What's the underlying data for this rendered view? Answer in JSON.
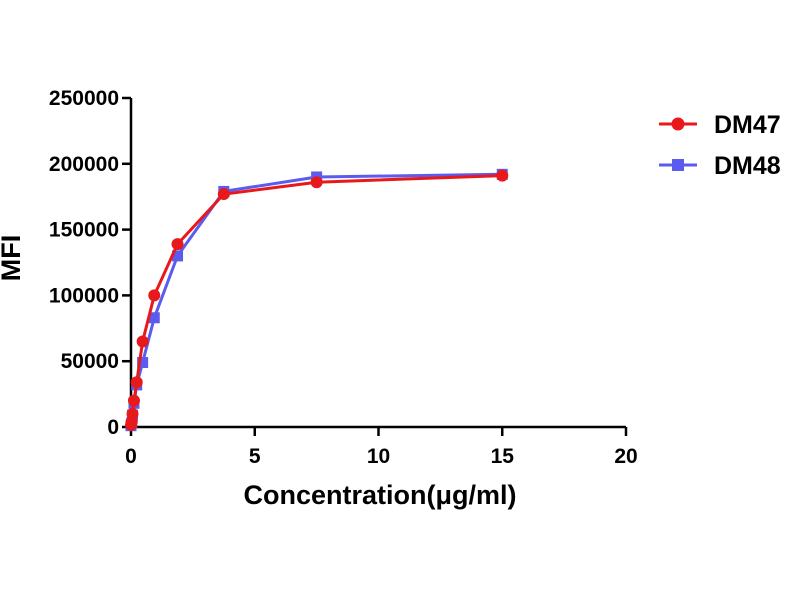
{
  "chart_data": {
    "type": "line",
    "xlabel": "Concentration(μg/ml)",
    "ylabel": "MFI",
    "xlim": [
      0,
      20
    ],
    "ylim": [
      0,
      250000
    ],
    "x_ticks": [
      0,
      5,
      10,
      15,
      20
    ],
    "y_ticks": [
      0,
      50000,
      100000,
      150000,
      200000,
      250000
    ],
    "x_tick_labels": [
      "0",
      "5",
      "10",
      "15",
      "20"
    ],
    "y_tick_labels": [
      "0",
      "50000",
      "100000",
      "150000",
      "200000",
      "250000"
    ],
    "grid": false,
    "legend_position": "right",
    "series": [
      {
        "name": "DM47",
        "color": "#e8191b",
        "marker": "circle",
        "x": [
          0.0,
          0.03,
          0.06,
          0.12,
          0.23,
          0.47,
          0.94,
          1.88,
          3.75,
          7.5,
          15
        ],
        "y": [
          1500,
          4000,
          10000,
          20000,
          34000,
          65000,
          100000,
          139000,
          177000,
          186000,
          191000
        ]
      },
      {
        "name": "DM48",
        "color": "#5b5bef",
        "marker": "square",
        "x": [
          0.0,
          0.03,
          0.06,
          0.12,
          0.23,
          0.47,
          0.94,
          1.88,
          3.75,
          7.5,
          15
        ],
        "y": [
          1000,
          3000,
          9000,
          18000,
          32000,
          49000,
          83000,
          130000,
          179000,
          190000,
          192000
        ]
      }
    ]
  }
}
